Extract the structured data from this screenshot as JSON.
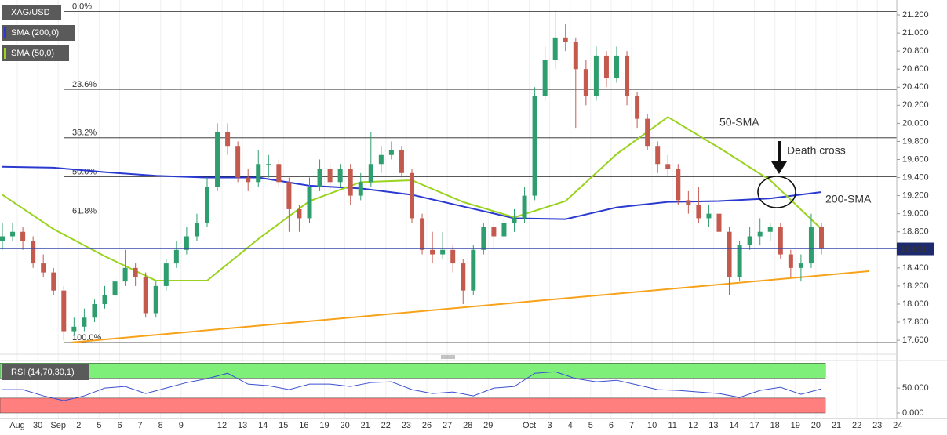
{
  "chart_data": {
    "type": "candlestick",
    "title": "XAG/USD",
    "up_color": "#2f9e6e",
    "down_color": "#c45a4e",
    "grid": true,
    "categories": [
      "Aug",
      "30",
      "Sep",
      "2",
      "5",
      "6",
      "7",
      "8",
      "9",
      null,
      "12",
      "13",
      "14",
      "15",
      "16",
      "19",
      "20",
      "21",
      "22",
      "23",
      "26",
      "27",
      "28",
      "29",
      null,
      "Oct",
      "3",
      "4",
      "5",
      "6",
      "7",
      "10",
      "11",
      "12",
      "13",
      "14",
      "17",
      "18",
      "19",
      "20",
      "21",
      "22",
      "23",
      "24"
    ],
    "ylim": [
      17.462,
      21.365
    ],
    "yticks": [
      {
        "value": 17.6,
        "label": "17.600"
      },
      {
        "value": 17.8,
        "label": "17.800"
      },
      {
        "value": 18.0,
        "label": "18.000"
      },
      {
        "value": 18.2,
        "label": "18.200"
      },
      {
        "value": 18.4,
        "label": "18.400"
      },
      {
        "value": 18.6,
        "label": "18.600"
      },
      {
        "value": 18.8,
        "label": "18.800"
      },
      {
        "value": 19.0,
        "label": "19.000"
      },
      {
        "value": 19.2,
        "label": "19.200"
      },
      {
        "value": 19.4,
        "label": "19.400"
      },
      {
        "value": 19.6,
        "label": "19.600"
      },
      {
        "value": 19.8,
        "label": "19.800"
      },
      {
        "value": 20.0,
        "label": "20.000"
      },
      {
        "value": 20.2,
        "label": "20.200"
      },
      {
        "value": 20.4,
        "label": "20.400"
      },
      {
        "value": 20.6,
        "label": "20.600"
      },
      {
        "value": 20.8,
        "label": "20.800"
      },
      {
        "value": 21.0,
        "label": "21.000"
      },
      {
        "value": 21.2,
        "label": "21.200"
      }
    ],
    "candles": [
      [
        18.7,
        18.9,
        18.6,
        18.75
      ],
      [
        18.75,
        18.9,
        18.7,
        18.8
      ],
      [
        18.8,
        18.85,
        18.6,
        18.7
      ],
      [
        18.7,
        18.75,
        18.4,
        18.45
      ],
      [
        18.45,
        18.55,
        18.3,
        18.35
      ],
      [
        18.35,
        18.4,
        18.1,
        18.15
      ],
      [
        18.15,
        18.2,
        17.6,
        17.7
      ],
      [
        17.7,
        17.85,
        17.65,
        17.75
      ],
      [
        17.75,
        17.95,
        17.7,
        17.85
      ],
      [
        17.85,
        18.05,
        17.8,
        18.0
      ],
      [
        18.0,
        18.2,
        17.95,
        18.1
      ],
      [
        18.1,
        18.3,
        18.05,
        18.25
      ],
      [
        18.25,
        18.6,
        18.2,
        18.4
      ],
      [
        18.4,
        18.45,
        18.2,
        18.3
      ],
      [
        18.3,
        18.35,
        17.85,
        17.9
      ],
      [
        17.9,
        18.25,
        17.85,
        18.2
      ],
      [
        18.2,
        18.5,
        18.15,
        18.45
      ],
      [
        18.45,
        18.7,
        18.4,
        18.6
      ],
      [
        18.6,
        18.85,
        18.55,
        18.75
      ],
      [
        18.75,
        19.0,
        18.7,
        18.9
      ],
      [
        18.9,
        19.4,
        18.85,
        19.3
      ],
      [
        19.3,
        20.0,
        19.25,
        19.9
      ],
      [
        19.9,
        20.0,
        19.65,
        19.75
      ],
      [
        19.75,
        19.8,
        19.35,
        19.4
      ],
      [
        19.4,
        19.5,
        19.25,
        19.35
      ],
      [
        19.35,
        19.7,
        19.3,
        19.55
      ],
      [
        19.55,
        19.65,
        19.4,
        19.55
      ],
      [
        19.55,
        19.6,
        19.3,
        19.35
      ],
      [
        19.35,
        19.4,
        18.8,
        19.05
      ],
      [
        19.05,
        19.1,
        18.8,
        18.95
      ],
      [
        18.95,
        19.4,
        18.9,
        19.3
      ],
      [
        19.3,
        19.6,
        19.25,
        19.5
      ],
      [
        19.5,
        19.55,
        19.25,
        19.35
      ],
      [
        19.35,
        19.55,
        19.3,
        19.5
      ],
      [
        19.5,
        19.55,
        19.1,
        19.2
      ],
      [
        19.2,
        19.45,
        19.15,
        19.35
      ],
      [
        19.35,
        19.9,
        19.3,
        19.55
      ],
      [
        19.55,
        19.75,
        19.45,
        19.65
      ],
      [
        19.65,
        19.8,
        19.6,
        19.7
      ],
      [
        19.7,
        19.75,
        19.4,
        19.45
      ],
      [
        19.45,
        19.5,
        18.9,
        18.95
      ],
      [
        18.95,
        19.0,
        18.55,
        18.6
      ],
      [
        18.6,
        18.8,
        18.45,
        18.55
      ],
      [
        18.55,
        18.8,
        18.5,
        18.6
      ],
      [
        18.6,
        18.65,
        18.35,
        18.45
      ],
      [
        18.45,
        18.5,
        18.0,
        18.15
      ],
      [
        18.15,
        18.65,
        18.1,
        18.6
      ],
      [
        18.6,
        18.9,
        18.55,
        18.85
      ],
      [
        18.85,
        18.9,
        18.6,
        18.75
      ],
      [
        18.75,
        18.95,
        18.7,
        18.9
      ],
      [
        18.9,
        19.05,
        18.8,
        18.95
      ],
      [
        18.95,
        19.3,
        18.9,
        19.2
      ],
      [
        19.2,
        20.4,
        19.15,
        20.3
      ],
      [
        20.3,
        20.85,
        20.25,
        20.7
      ],
      [
        20.7,
        21.25,
        20.6,
        20.95
      ],
      [
        20.95,
        21.1,
        20.8,
        20.9
      ],
      [
        20.9,
        20.95,
        19.95,
        20.6
      ],
      [
        20.6,
        20.7,
        20.2,
        20.3
      ],
      [
        20.3,
        20.85,
        20.25,
        20.75
      ],
      [
        20.75,
        20.8,
        20.4,
        20.5
      ],
      [
        20.5,
        20.85,
        20.45,
        20.75
      ],
      [
        20.75,
        20.8,
        20.2,
        20.3
      ],
      [
        20.3,
        20.35,
        19.95,
        20.05
      ],
      [
        20.05,
        20.1,
        19.7,
        19.75
      ],
      [
        19.75,
        19.8,
        19.45,
        19.55
      ],
      [
        19.55,
        19.65,
        19.4,
        19.5
      ],
      [
        19.5,
        19.55,
        19.1,
        19.15
      ],
      [
        19.15,
        19.25,
        19.0,
        19.1
      ],
      [
        19.1,
        19.3,
        18.9,
        18.95
      ],
      [
        18.95,
        19.1,
        18.85,
        19.0
      ],
      [
        19.0,
        19.05,
        18.7,
        18.8
      ],
      [
        18.8,
        18.85,
        18.1,
        18.3
      ],
      [
        18.3,
        18.7,
        18.25,
        18.65
      ],
      [
        18.65,
        18.85,
        18.6,
        18.75
      ],
      [
        18.75,
        18.95,
        18.65,
        18.8
      ],
      [
        18.8,
        18.9,
        18.7,
        18.85
      ],
      [
        18.85,
        18.9,
        18.5,
        18.55
      ],
      [
        18.55,
        18.6,
        18.3,
        18.4
      ],
      [
        18.4,
        18.55,
        18.25,
        18.45
      ],
      [
        18.45,
        19.0,
        18.4,
        18.85
      ],
      [
        18.85,
        18.9,
        18.55,
        18.611
      ]
    ],
    "series": [
      {
        "name": "SMA (200,0)",
        "color": "#2a3ad0",
        "x": [
          0,
          5,
          10,
          15,
          20,
          25,
          30,
          35,
          40,
          45,
          50,
          55,
          60,
          65,
          70,
          75,
          80
        ],
        "values": [
          19.52,
          19.51,
          19.46,
          19.42,
          19.4,
          19.4,
          19.31,
          19.28,
          19.21,
          19.08,
          18.95,
          18.94,
          19.07,
          19.13,
          19.14,
          19.17,
          19.24
        ]
      },
      {
        "name": "SMA (50,0)",
        "color": "#9ad31f",
        "x": [
          0,
          5,
          10,
          15,
          20,
          25,
          30,
          35,
          40,
          45,
          50,
          55,
          60,
          65,
          70,
          75,
          80
        ],
        "values": [
          19.21,
          18.83,
          18.53,
          18.26,
          18.26,
          18.72,
          19.14,
          19.35,
          19.37,
          19.13,
          18.96,
          19.14,
          19.66,
          20.07,
          19.73,
          19.37,
          18.83
        ]
      }
    ],
    "trendline": {
      "color": "#f7a21b",
      "x": [
        6.67,
        84.6
      ],
      "values": [
        17.575,
        18.364
      ]
    },
    "fib_levels": [
      {
        "label": "0.0%",
        "value": 21.24
      },
      {
        "label": "23.6%",
        "value": 20.375
      },
      {
        "label": "38.2%",
        "value": 19.84
      },
      {
        "label": "50.0%",
        "value": 19.41
      },
      {
        "label": "61.8%",
        "value": 18.975
      },
      {
        "label": "100.0%",
        "value": 17.575
      }
    ],
    "annotations": [
      {
        "text": "50-SMA",
        "color": "#8cc81e"
      },
      {
        "text": "200-SMA",
        "color": "#7a5cc8"
      },
      {
        "text": "Death cross",
        "color": "#111111"
      }
    ],
    "rsi": {
      "name": "RSI (14,70,30,1)",
      "color": "#3a4fd0",
      "ylim": [
        -11,
        102
      ],
      "yticks": [
        {
          "value": 50,
          "label": "50.000"
        },
        {
          "value": 0,
          "label": "0.000"
        }
      ],
      "overbought": [
        70,
        100
      ],
      "oversold": [
        0,
        30
      ],
      "values": [
        46.9,
        46.9,
        34.4,
        25.0,
        34.4,
        50.0,
        53.1,
        39.1,
        50.0,
        60.9,
        68.8,
        79.7,
        57.8,
        54.7,
        46.9,
        57.8,
        57.8,
        53.1,
        60.9,
        62.5,
        46.9,
        39.1,
        42.2,
        34.4,
        50.0,
        53.1,
        79.7,
        82.8,
        68.8,
        62.5,
        65.6,
        56.3,
        46.9,
        45.3,
        42.2,
        39.1,
        31.3,
        45.3,
        51.6,
        37.5,
        48.4
      ]
    }
  }
}
